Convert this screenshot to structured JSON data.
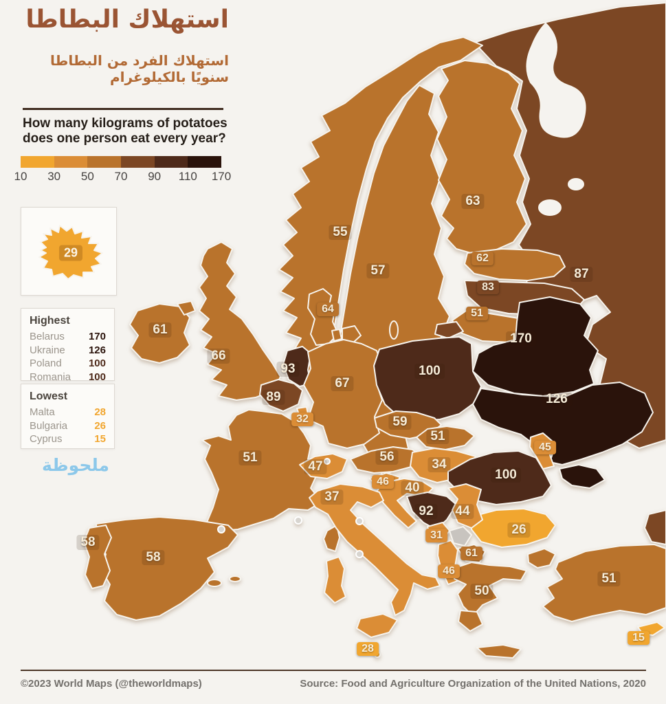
{
  "header": {
    "title_ar": "استهلاك البطاطا",
    "subtitle_ar": "استهلاك الفرد من البطاطا سنويًا بالكيلوغرام",
    "question_line1": "How many kilograms of potatoes",
    "question_line2": "does one person eat every year?"
  },
  "legend": {
    "ticks": [
      "10",
      "30",
      "50",
      "70",
      "90",
      "110",
      "170"
    ],
    "bins": [
      {
        "min": 10,
        "max": 30,
        "color": "#F1A62F"
      },
      {
        "min": 30,
        "max": 50,
        "color": "#DB8D36"
      },
      {
        "min": 50,
        "max": 70,
        "color": "#B9732C"
      },
      {
        "min": 70,
        "max": 90,
        "color": "#7C4724"
      },
      {
        "min": 90,
        "max": 110,
        "color": "#4E2A1A"
      },
      {
        "min": 110,
        "max": 171,
        "color": "#2A130B"
      }
    ]
  },
  "map": {
    "no_data_color": "#c8c4bf"
  },
  "inset": {
    "country": "Iceland",
    "value": "29"
  },
  "highest": {
    "title": "Highest",
    "rows": [
      {
        "country": "Belarus",
        "value": 170
      },
      {
        "country": "Ukraine",
        "value": 126
      },
      {
        "country": "Poland",
        "value": 100
      },
      {
        "country": "Romania",
        "value": 100
      }
    ]
  },
  "lowest": {
    "title": "Lowest",
    "rows": [
      {
        "country": "Malta",
        "value": 28
      },
      {
        "country": "Bulgaria",
        "value": 26
      },
      {
        "country": "Cyprus",
        "value": 15
      }
    ]
  },
  "note_ar": "ملحوظة",
  "footer": {
    "left": "©2023 World Maps (@theworldmaps)",
    "right": "Source: Food and Agriculture Organization of the United Nations, 2020"
  },
  "chart_data": {
    "type": "choropleth",
    "title_ar": "استهلاك البطاطا",
    "question_en": "How many kilograms of potatoes does one person eat every year?",
    "unit": "kg per person per year",
    "legend_breaks": [
      10,
      30,
      50,
      70,
      90,
      110,
      170
    ],
    "countries": [
      {
        "name": "Iceland",
        "value": 29,
        "label": null,
        "chip": false
      },
      {
        "name": "Norway",
        "value": 55,
        "label": [
          495,
          338
        ],
        "chip": false
      },
      {
        "name": "Sweden",
        "value": 57,
        "label": [
          550,
          394
        ],
        "chip": false
      },
      {
        "name": "Finland",
        "value": 63,
        "label": [
          688,
          293
        ],
        "chip": false
      },
      {
        "name": "Russia",
        "value": 87,
        "label": [
          846,
          399
        ],
        "chip": false
      },
      {
        "name": "Estonia",
        "value": 62,
        "label": [
          702,
          376
        ],
        "chip": true
      },
      {
        "name": "Latvia",
        "value": 83,
        "label": [
          710,
          418
        ],
        "chip": true
      },
      {
        "name": "Lithuania",
        "value": 51,
        "label": [
          694,
          456
        ],
        "chip": true
      },
      {
        "name": "Denmark",
        "value": 64,
        "label": [
          477,
          450
        ],
        "chip": true
      },
      {
        "name": "Ireland",
        "value": 61,
        "label": [
          233,
          480
        ],
        "chip": false
      },
      {
        "name": "United Kingdom",
        "value": 66,
        "label": [
          318,
          518
        ],
        "chip": false
      },
      {
        "name": "Netherlands",
        "value": 93,
        "label": [
          419,
          537
        ],
        "chip": false
      },
      {
        "name": "Belgium",
        "value": 89,
        "label": [
          398,
          578
        ],
        "chip": false
      },
      {
        "name": "Luxembourg",
        "value": 32,
        "label": [
          440,
          610
        ],
        "chip": true
      },
      {
        "name": "Germany",
        "value": 67,
        "label": [
          498,
          558
        ],
        "chip": false
      },
      {
        "name": "Poland",
        "value": 100,
        "label": [
          625,
          540
        ],
        "chip": false
      },
      {
        "name": "Belarus",
        "value": 170,
        "label": [
          758,
          493
        ],
        "chip": false
      },
      {
        "name": "Ukraine",
        "value": 126,
        "label": [
          810,
          581
        ],
        "chip": false
      },
      {
        "name": "Czechia",
        "value": 59,
        "label": [
          582,
          614
        ],
        "chip": false
      },
      {
        "name": "Slovakia",
        "value": 51,
        "label": [
          637,
          635
        ],
        "chip": false
      },
      {
        "name": "Austria",
        "value": 56,
        "label": [
          563,
          665
        ],
        "chip": false
      },
      {
        "name": "Switzerland",
        "value": 47,
        "label": [
          459,
          679
        ],
        "chip": false
      },
      {
        "name": "France",
        "value": 51,
        "label": [
          364,
          666
        ],
        "chip": false
      },
      {
        "name": "Hungary",
        "value": 34,
        "label": [
          639,
          676
        ],
        "chip": false
      },
      {
        "name": "Moldova",
        "value": 45,
        "label": [
          793,
          651
        ],
        "chip": true
      },
      {
        "name": "Romania",
        "value": 100,
        "label": [
          736,
          691
        ],
        "chip": false
      },
      {
        "name": "Slovenia",
        "value": 46,
        "label": [
          557,
          701
        ],
        "chip": true
      },
      {
        "name": "Croatia",
        "value": 40,
        "label": [
          600,
          710
        ],
        "chip": false
      },
      {
        "name": "Italy",
        "value": 37,
        "label": [
          483,
          723
        ],
        "chip": false
      },
      {
        "name": "Bosnia and Herzegovina",
        "value": 92,
        "label": [
          620,
          744
        ],
        "chip": false
      },
      {
        "name": "Serbia",
        "value": 44,
        "label": [
          673,
          744
        ],
        "chip": false
      },
      {
        "name": "Montenegro",
        "value": 31,
        "label": [
          635,
          779
        ],
        "chip": true
      },
      {
        "name": "Kosovo",
        "value": null,
        "label": null,
        "chip": false
      },
      {
        "name": "North Macedonia",
        "value": 61,
        "label": [
          686,
          805
        ],
        "chip": true
      },
      {
        "name": "Albania",
        "value": 46,
        "label": [
          653,
          831
        ],
        "chip": true
      },
      {
        "name": "Greece",
        "value": 50,
        "label": [
          701,
          860
        ],
        "chip": false
      },
      {
        "name": "Bulgaria",
        "value": 26,
        "label": [
          755,
          771
        ],
        "chip": false
      },
      {
        "name": "Portugal",
        "value": 58,
        "label": [
          128,
          789
        ],
        "chip": false
      },
      {
        "name": "Spain",
        "value": 58,
        "label": [
          223,
          811
        ],
        "chip": false
      },
      {
        "name": "Turkey",
        "value": 51,
        "label": [
          886,
          842
        ],
        "chip": false
      },
      {
        "name": "Malta",
        "value": 28,
        "label": [
          535,
          944
        ],
        "chip": true
      },
      {
        "name": "Cyprus",
        "value": 15,
        "label": [
          929,
          928
        ],
        "chip": true
      }
    ]
  }
}
